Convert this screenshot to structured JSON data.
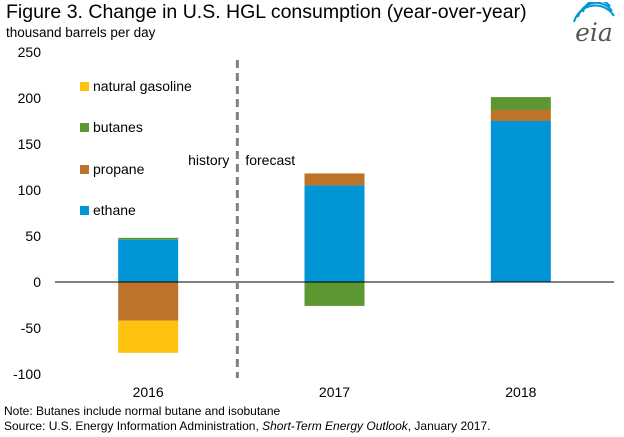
{
  "title": "Figure 3. Change in U.S. HGL consumption (year-over-year)",
  "subtitle": "thousand barrels per day",
  "logo_text": "eia",
  "note": "Note: Butanes include normal butane and isobutane",
  "source": {
    "prefix": "Source: U.S. Energy Information Administration, ",
    "publication": "Short-Term Energy Outlook",
    "suffix": ", January 2017."
  },
  "chart_data": {
    "type": "bar",
    "stacked": true,
    "title": "Figure 3. Change in U.S. HGL consumption (year-over-year)",
    "ylabel": "thousand barrels per day",
    "xlabel": "",
    "categories": [
      "2016",
      "2017",
      "2018"
    ],
    "ylim": [
      -100,
      250
    ],
    "yticks": [
      -100,
      -50,
      0,
      50,
      100,
      150,
      200,
      250
    ],
    "grid": false,
    "legend_position": "top-left",
    "series": [
      {
        "name": "ethane",
        "color": "#0096D6",
        "values": [
          46,
          105,
          175
        ]
      },
      {
        "name": "propane",
        "color": "#BD7329",
        "values": [
          -42,
          13,
          12
        ]
      },
      {
        "name": "butanes",
        "color": "#5D9732",
        "values": [
          2,
          -26,
          14
        ]
      },
      {
        "name": "natural gasoline",
        "color": "#FFC20E",
        "values": [
          -35,
          0,
          0
        ]
      }
    ],
    "legend_order": [
      "natural gasoline",
      "butanes",
      "propane",
      "ethane"
    ],
    "divider": {
      "after_category": "2016",
      "left_label": "history",
      "right_label": "forecast"
    }
  }
}
